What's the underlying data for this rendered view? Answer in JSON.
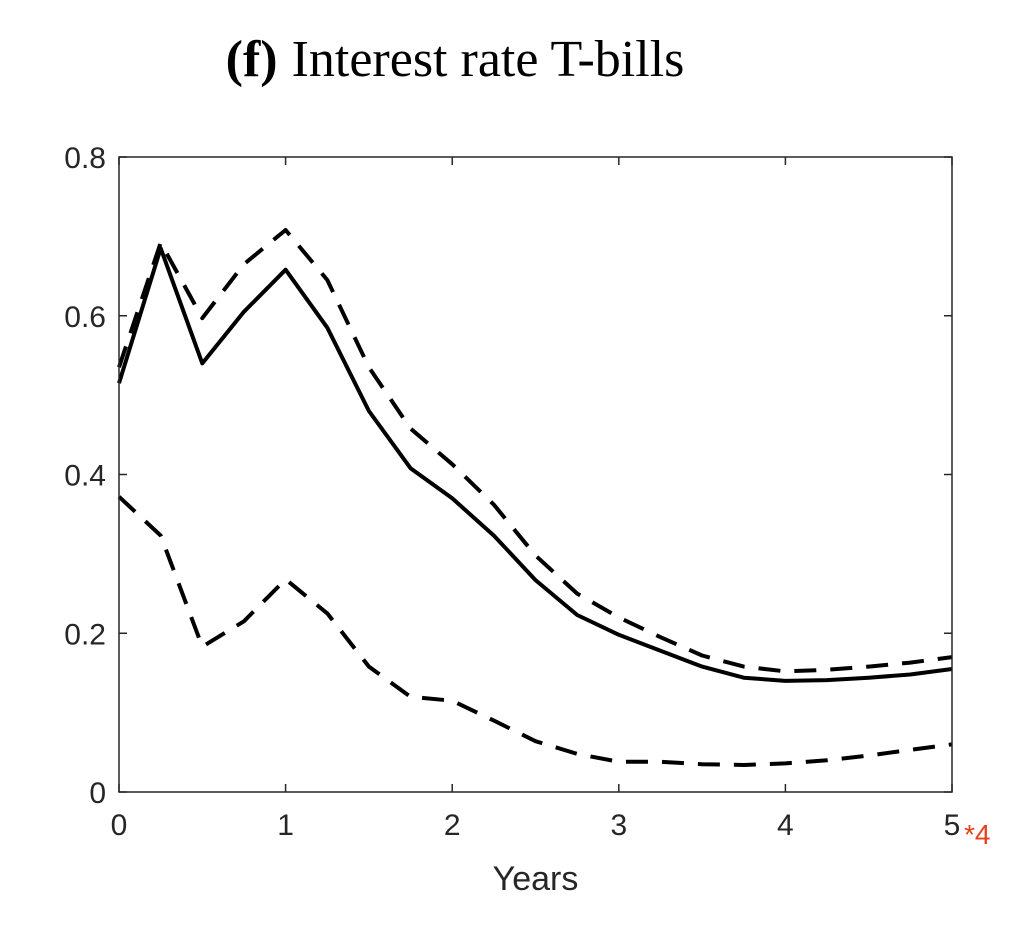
{
  "title": {
    "label": "(f)",
    "text": "Interest rate T-bills"
  },
  "chart_data": {
    "type": "line",
    "xlabel": "Years",
    "ylabel": "",
    "xlim": [
      0,
      5
    ],
    "ylim": [
      0,
      0.8
    ],
    "xticks": [
      0,
      1,
      2,
      3,
      4,
      5
    ],
    "yticks": [
      0,
      0.2,
      0.4,
      0.6,
      0.8
    ],
    "xtick_labels": [
      "0",
      "1",
      "2",
      "3",
      "4",
      "5"
    ],
    "ytick_labels": [
      "0",
      "0.2",
      "0.4",
      "0.6",
      "0.8"
    ],
    "grid": false,
    "annotation": {
      "text": "*4",
      "color": "#e8401c"
    },
    "x": [
      0,
      0.25,
      0.5,
      0.75,
      1.0,
      1.25,
      1.5,
      1.75,
      2.0,
      2.25,
      2.5,
      2.75,
      3.0,
      3.25,
      3.5,
      3.75,
      4.0,
      4.25,
      4.5,
      4.75,
      5.0
    ],
    "series": [
      {
        "style": "solid",
        "color": "#000000",
        "values": [
          0.515,
          0.685,
          0.54,
          0.605,
          0.658,
          0.585,
          0.48,
          0.408,
          0.37,
          0.323,
          0.267,
          0.223,
          0.198,
          0.178,
          0.158,
          0.144,
          0.14,
          0.141,
          0.144,
          0.148,
          0.155
        ]
      },
      {
        "style": "dashed",
        "color": "#000000",
        "values": [
          0.535,
          0.692,
          0.597,
          0.665,
          0.708,
          0.645,
          0.535,
          0.458,
          0.413,
          0.362,
          0.298,
          0.25,
          0.22,
          0.195,
          0.172,
          0.158,
          0.152,
          0.154,
          0.158,
          0.163,
          0.17
        ]
      },
      {
        "style": "dashed",
        "color": "#000000",
        "values": [
          0.372,
          0.323,
          0.183,
          0.215,
          0.268,
          0.225,
          0.158,
          0.12,
          0.115,
          0.09,
          0.064,
          0.048,
          0.038,
          0.038,
          0.035,
          0.034,
          0.036,
          0.04,
          0.046,
          0.053,
          0.06
        ]
      }
    ]
  }
}
